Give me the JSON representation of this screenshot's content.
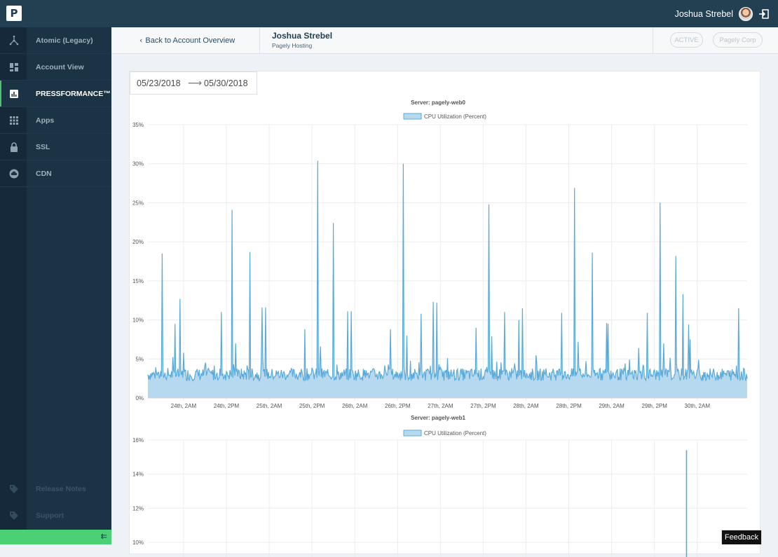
{
  "topbar": {
    "logo_letter": "P",
    "user_name": "Joshua Strebel"
  },
  "sidebar": {
    "items": [
      {
        "label": "Atomic (Legacy)",
        "icon": "atom-icon"
      },
      {
        "label": "Account View",
        "icon": "dashboard-icon"
      },
      {
        "label": "PRESSFORMANCE™",
        "icon": "bar-chart-icon",
        "active": true
      },
      {
        "label": "Apps",
        "icon": "grid-icon"
      },
      {
        "label": "SSL",
        "icon": "lock-icon"
      },
      {
        "label": "CDN",
        "icon": "cloud-icon"
      }
    ],
    "footer_items": [
      {
        "label": "Release Notes",
        "icon": "tag-icon"
      },
      {
        "label": "Support",
        "icon": "tag-icon"
      }
    ],
    "collapse_icon": "collapse-arrow-icon",
    "accent_color": "#4cd075"
  },
  "subheader": {
    "back_label": "Back to Account Overview",
    "account_name": "Joshua Strebel",
    "account_sub": "Pagely Hosting",
    "status_pill": "ACTIVE",
    "company_pill": "Pagely Corp"
  },
  "date_range": {
    "start": "05/23/2018",
    "end": "05/30/2018"
  },
  "chart_data": [
    {
      "type": "area",
      "title": "Server: pagely-web0",
      "legend": [
        "CPU Utilization (Percent)"
      ],
      "ylim": [
        0,
        35
      ],
      "yticks": [
        "0%",
        "5%",
        "10%",
        "15%",
        "20%",
        "25%",
        "30%",
        "35%"
      ],
      "xticks": [
        "24th, 2AM",
        "24th, 2PM",
        "25th, 2AM",
        "25th, 2PM",
        "26th, 2AM",
        "26th, 2PM",
        "27th, 2AM",
        "27th, 2PM",
        "28th, 2AM",
        "28th, 2PM",
        "29th, 2AM",
        "29th, 2PM",
        "30th, 2AM"
      ],
      "x_range": [
        0,
        168
      ],
      "baseline": 3,
      "series": [
        {
          "name": "CPU Utilization (Percent)",
          "color": "#5aaad9",
          "spikes": [
            [
              4,
              18.5
            ],
            [
              7.5,
              9.5
            ],
            [
              9,
              12.7
            ],
            [
              10,
              5.8
            ],
            [
              20.5,
              11
            ],
            [
              23.5,
              24.1
            ],
            [
              24.5,
              7
            ],
            [
              28.5,
              18.7
            ],
            [
              32,
              11.6
            ],
            [
              33,
              11.6
            ],
            [
              44,
              8.8
            ],
            [
              47.5,
              30.4
            ],
            [
              48.5,
              6.6
            ],
            [
              52,
              22.4
            ],
            [
              56,
              11.1
            ],
            [
              57,
              11.1
            ],
            [
              68,
              8.8
            ],
            [
              71.5,
              30
            ],
            [
              72.5,
              8
            ],
            [
              76.5,
              10.8
            ],
            [
              80,
              12.3
            ],
            [
              81,
              12.2
            ],
            [
              92,
              9
            ],
            [
              95.5,
              24.8
            ],
            [
              96.5,
              7.9
            ],
            [
              100,
              11
            ],
            [
              104,
              10
            ],
            [
              105,
              11.5
            ],
            [
              116,
              10.9
            ],
            [
              119.5,
              26.9
            ],
            [
              120.5,
              7.2
            ],
            [
              124.5,
              18.6
            ],
            [
              128.5,
              9.6
            ],
            [
              129,
              9.5
            ],
            [
              137.5,
              6.4
            ],
            [
              140,
              10.9
            ],
            [
              143.5,
              25
            ],
            [
              144.5,
              7
            ],
            [
              148,
              18.2
            ],
            [
              150,
              13.3
            ],
            [
              151.5,
              9.4
            ],
            [
              152,
              7.5
            ],
            [
              165.5,
              11.5
            ]
          ]
        }
      ]
    },
    {
      "type": "area",
      "title": "Server: pagely-web1",
      "legend": [
        "CPU Utilization (Percent)"
      ],
      "ylim": [
        0,
        16
      ],
      "yticks": [
        "10%",
        "12%",
        "14%",
        "16%"
      ],
      "x_range": [
        0,
        168
      ],
      "series": [
        {
          "name": "CPU Utilization (Percent)",
          "color": "#5aaad9",
          "spikes": [
            [
              151,
              15.4
            ]
          ]
        }
      ]
    }
  ],
  "feedback_label": "Feedback"
}
